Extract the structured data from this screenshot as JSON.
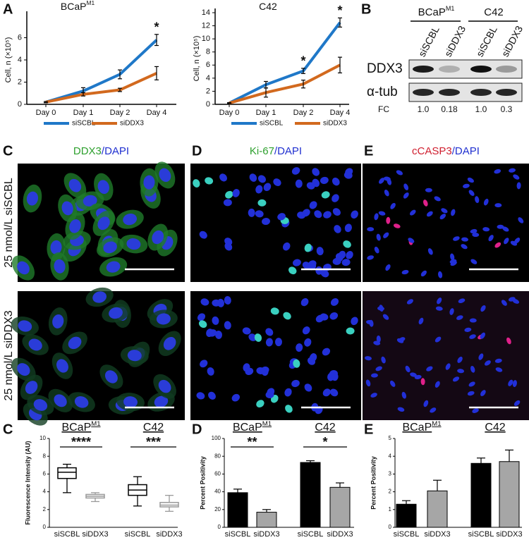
{
  "panel_labels": [
    "A",
    "B",
    "C",
    "D",
    "E"
  ],
  "chart_data": [
    {
      "type": "line",
      "title": "BCaP",
      "title_superscript": "M1",
      "y_label": "Cell, n (×10⁵)",
      "categories": [
        "Day 0",
        "Day 1",
        "Day 2",
        "Day 4"
      ],
      "ylim": [
        0,
        8
      ],
      "yticks": [
        0,
        2,
        4,
        6
      ],
      "series": [
        {
          "name": "siSCBL",
          "color": "#1f78c8",
          "values": [
            0.2,
            1.2,
            2.7,
            5.8
          ],
          "errors": [
            0.05,
            0.3,
            0.4,
            0.5
          ],
          "significance": [
            null,
            null,
            null,
            "*"
          ]
        },
        {
          "name": "siDDX3",
          "color": "#d2691e",
          "values": [
            0.2,
            0.9,
            1.3,
            2.8
          ],
          "errors": [
            0.05,
            0.15,
            0.15,
            0.6
          ]
        }
      ]
    },
    {
      "type": "line",
      "title": "C42",
      "y_label": "Cell, n (×10⁵)",
      "categories": [
        "Day 0",
        "Day 1",
        "Day 2",
        "Day 4"
      ],
      "ylim": [
        0,
        14
      ],
      "yticks": [
        0,
        2,
        4,
        6,
        8,
        10,
        12,
        14
      ],
      "series": [
        {
          "name": "siSCBL",
          "color": "#1f78c8",
          "values": [
            0.2,
            3.0,
            5.1,
            12.5
          ],
          "errors": [
            0.05,
            0.5,
            0.4,
            0.7
          ],
          "significance": [
            null,
            null,
            "*",
            "*"
          ]
        },
        {
          "name": "siDDX3",
          "color": "#d2691e",
          "values": [
            0.2,
            1.8,
            3.1,
            6.0
          ],
          "errors": [
            0.05,
            0.7,
            0.6,
            1.2
          ]
        }
      ]
    },
    {
      "type": "box",
      "y_label": "Fluorescence Intensity (AU)",
      "ylim": [
        0,
        10
      ],
      "yticks": [
        0,
        2,
        4,
        6,
        8,
        10
      ],
      "groups": [
        {
          "text": "BCaP",
          "superscript": "M1"
        },
        {
          "text": "C42"
        }
      ],
      "significance": [
        "****",
        "***"
      ],
      "categories": [
        "siSCBL",
        "siDDX3",
        "siSCBL",
        "siDDX3"
      ],
      "colors": [
        "#000000",
        "#9a9a9a",
        "#000000",
        "#9a9a9a"
      ],
      "boxes": [
        {
          "min": 3.9,
          "q1": 5.5,
          "median": 6.2,
          "q3": 6.7,
          "max": 7.1
        },
        {
          "min": 2.9,
          "q1": 3.3,
          "median": 3.5,
          "q3": 3.7,
          "max": 3.9
        },
        {
          "min": 2.4,
          "q1": 3.6,
          "median": 4.2,
          "q3": 4.8,
          "max": 5.7
        },
        {
          "min": 1.8,
          "q1": 2.3,
          "median": 2.5,
          "q3": 2.8,
          "max": 3.6
        }
      ]
    },
    {
      "type": "bar",
      "y_label": "Percent Positivity",
      "ylim": [
        0,
        100
      ],
      "yticks": [
        0,
        20,
        40,
        60,
        80,
        100
      ],
      "groups": [
        {
          "text": "BCaP",
          "superscript": "M1"
        },
        {
          "text": "C42"
        }
      ],
      "significance": [
        "**",
        "*"
      ],
      "categories": [
        "siSCBL",
        "siDDX3",
        "siSCBL",
        "siDDX3"
      ],
      "colors": [
        "#000000",
        "#a6a6a6",
        "#000000",
        "#a6a6a6"
      ],
      "values": [
        39,
        17,
        73,
        45
      ],
      "errors": [
        4,
        3,
        2,
        5
      ]
    },
    {
      "type": "bar",
      "y_label": "Percent Positivity",
      "ylim": [
        0,
        5
      ],
      "yticks": [
        0,
        1,
        2,
        3,
        4,
        5
      ],
      "groups": [
        {
          "text": "BCaP",
          "superscript": "M1"
        },
        {
          "text": "C42"
        }
      ],
      "categories": [
        "siSCBL",
        "siDDX3",
        "siSCBL",
        "siDDX3"
      ],
      "colors": [
        "#000000",
        "#a6a6a6",
        "#000000",
        "#a6a6a6"
      ],
      "values": [
        1.3,
        2.05,
        3.6,
        3.7
      ],
      "errors": [
        0.2,
        0.6,
        0.3,
        0.65
      ]
    }
  ],
  "blot": {
    "group_labels": [
      {
        "text": "BCaP",
        "superscript": "M1"
      },
      {
        "text": "C42"
      }
    ],
    "lanes": [
      "siSCBL",
      "siDDX3",
      "siSCBL",
      "siDDX3"
    ],
    "rows": [
      "DDX3",
      "α-tub"
    ],
    "fc_label": "FC",
    "fc_values": [
      "1.0",
      "0.18",
      "1.0",
      "0.3"
    ]
  },
  "microscopy": {
    "row_labels": [
      "25 nmol/L siSCBL",
      "25 nmol/L siDDX3"
    ],
    "panels": [
      {
        "title": [
          {
            "text": "DDX3",
            "color": "#2ea02e"
          },
          {
            "text": "/DAPI",
            "color": "#2030d0"
          }
        ]
      },
      {
        "title": [
          {
            "text": "Ki-67",
            "color": "#2ea02e"
          },
          {
            "text": "/DAPI",
            "color": "#2030d0"
          }
        ]
      },
      {
        "title": [
          {
            "text": "cCASP3",
            "color": "#d02030"
          },
          {
            "text": "/DAPI",
            "color": "#2030d0"
          }
        ]
      }
    ]
  }
}
